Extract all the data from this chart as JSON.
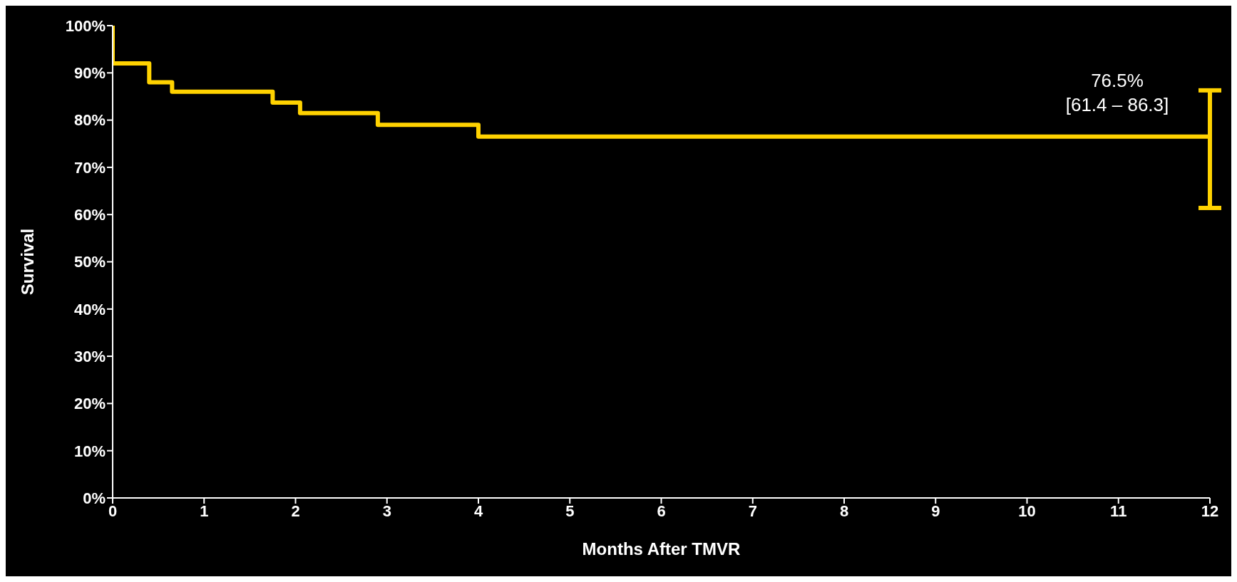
{
  "chart_data": {
    "type": "step",
    "xlabel": "Months After TMVR",
    "ylabel": "Survival",
    "x": [
      0,
      0,
      0.4,
      0.65,
      1.75,
      2.05,
      2.9,
      4,
      12
    ],
    "series": [
      {
        "color": "#ffd200",
        "values": [
          100,
          92,
          88,
          86,
          83.7,
          81.5,
          79,
          76.5,
          76.5
        ],
        "errors": [
          null,
          null,
          null,
          null,
          null,
          null,
          null,
          null,
          [
            61.4,
            86.3
          ]
        ]
      }
    ],
    "xlim": [
      0,
      12
    ],
    "xticks": [
      0,
      1,
      2,
      3,
      4,
      5,
      6,
      7,
      8,
      9,
      10,
      11,
      12
    ],
    "ylim": [
      0,
      100
    ],
    "yticks": [
      {
        "value": 0,
        "label": "0%"
      },
      {
        "value": 10,
        "label": "10%"
      },
      {
        "value": 20,
        "label": "20%"
      },
      {
        "value": 30,
        "label": "30%"
      },
      {
        "value": 40,
        "label": "40%"
      },
      {
        "value": 50,
        "label": "50%"
      },
      {
        "value": 60,
        "label": "60%"
      },
      {
        "value": 70,
        "label": "70%"
      },
      {
        "value": 80,
        "label": "80%"
      },
      {
        "value": 90,
        "label": "90%"
      },
      {
        "value": 100,
        "label": "100%"
      }
    ],
    "annotations": [
      {
        "text": "76.5%\n[61.4 – 86.3]",
        "x": 12,
        "y": 76.5
      }
    ],
    "grid": false,
    "legend": false,
    "marker": "none",
    "line_style": "solid"
  }
}
